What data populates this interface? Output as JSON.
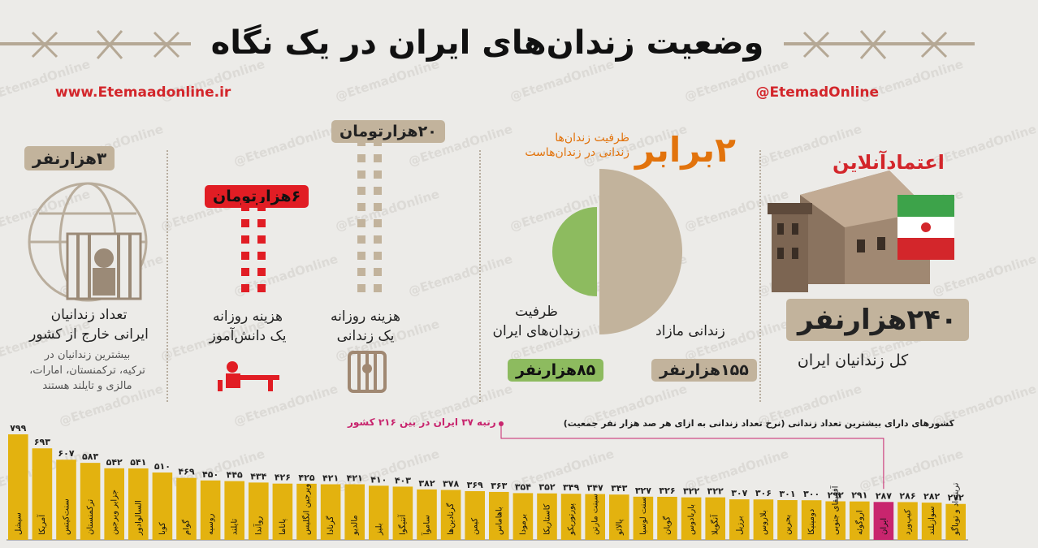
{
  "header": {
    "title": "وضعیت زندان‌های ایران در یک نگاه",
    "website": "www.Etemaadonline.ir",
    "handle": "@EtemadOnline",
    "watermark": "@EtemadOnline",
    "logo_text": "اعتمادآنلاین"
  },
  "panel_total": {
    "value": "۲۴۰هزارنفر",
    "caption": "کل زندانیان ایران"
  },
  "panel_capacity": {
    "ratio": "۲برابر",
    "ratio_note_1": "ظرفیت زندان‌ها",
    "ratio_note_2": "زندانی در زندان‌هاست",
    "capacity_label": "ظرفیت\nزندان‌های ایران",
    "excess_label": "زندانی مازاد",
    "capacity_value": "۸۵هزارنفر",
    "excess_value": "۱۵۵هزارنفر"
  },
  "panel_cost": {
    "prisoner_cost": "۲۰هزارتومان",
    "student_cost": "۶هزارتومان",
    "prisoner_label": "هزینه روزانه\nیک زندانی",
    "student_label": "هزینه روزانه\nیک دانش‌آموز",
    "prisoner_squares": 20,
    "student_squares": 6
  },
  "panel_abroad": {
    "value": "۳هزارنفر",
    "label": "تعداد زندانیان\nایرانی خارج از کشور",
    "note": "بیشترین زندانیان در\nترکیه، ترکمنستان، امارات،\nمالزی و تایلند هستند"
  },
  "colors": {
    "bar": "#e3b20f",
    "highlight": "#c8256e",
    "tan": "#c2b39c",
    "red": "#e11d24",
    "green": "#8dbb5f"
  },
  "chart_data": {
    "type": "bar",
    "title": "کشورهای دارای بیشترین تعداد زندانی (نرخ تعداد زندانی به ازای هر صد هزار نفر جمعیت)",
    "annotation": "رتبه ۳۷ ایران در بین ۲۱۶ کشور",
    "highlight": "ایران",
    "categories": [
      "سیشل",
      "آمریکا",
      "سنت‌کیتس",
      "ترکمنستان",
      "جزایر ویرجین",
      "السالوادور",
      "کوبا",
      "گوام",
      "روسیه",
      "تایلند",
      "روآندا",
      "پاناما",
      "ویرجین انگلیس",
      "گرنادا",
      "مالدیو",
      "بلیز",
      "آنتیگوا",
      "ساموآ",
      "گرنادین‌ها",
      "کیمن",
      "باهاماس",
      "برمودا",
      "کاستاریکا",
      "پورتوریکو",
      "سینت مارتن",
      "پالائو",
      "سنت لوسیا",
      "گویان",
      "باربادوس",
      "آنگویلا",
      "برزیل",
      "بلاروس",
      "بحرین",
      "دومینیکا",
      "آفریقای جنوبی",
      "اروگوئه",
      "ایران",
      "کیپ‌ورد",
      "سوازیلند",
      "ترینیداد و توباگو"
    ],
    "values": [
      799,
      693,
      607,
      583,
      542,
      541,
      510,
      469,
      450,
      445,
      434,
      426,
      425,
      421,
      421,
      410,
      403,
      382,
      378,
      369,
      363,
      354,
      352,
      349,
      347,
      343,
      327,
      326,
      322,
      322,
      307,
      306,
      301,
      300,
      292,
      291,
      287,
      286,
      282,
      272
    ],
    "value_labels": [
      "۷۹۹",
      "۶۹۳",
      "۶۰۷",
      "۵۸۳",
      "۵۴۲",
      "۵۴۱",
      "۵۱۰",
      "۴۶۹",
      "۴۵۰",
      "۴۴۵",
      "۴۳۴",
      "۴۲۶",
      "۴۲۵",
      "۴۲۱",
      "۴۲۱",
      "۴۱۰",
      "۴۰۳",
      "۳۸۲",
      "۳۷۸",
      "۳۶۹",
      "۳۶۳",
      "۳۵۴",
      "۳۵۲",
      "۳۴۹",
      "۳۴۷",
      "۳۴۳",
      "۳۲۷",
      "۳۲۶",
      "۳۲۲",
      "۳۲۲",
      "۳۰۷",
      "۳۰۶",
      "۳۰۱",
      "۳۰۰",
      "۲۹۲",
      "۲۹۱",
      "۲۸۷",
      "۲۸۶",
      "۲۸۲",
      "۲۷۲"
    ],
    "ylim": [
      0,
      799
    ]
  }
}
